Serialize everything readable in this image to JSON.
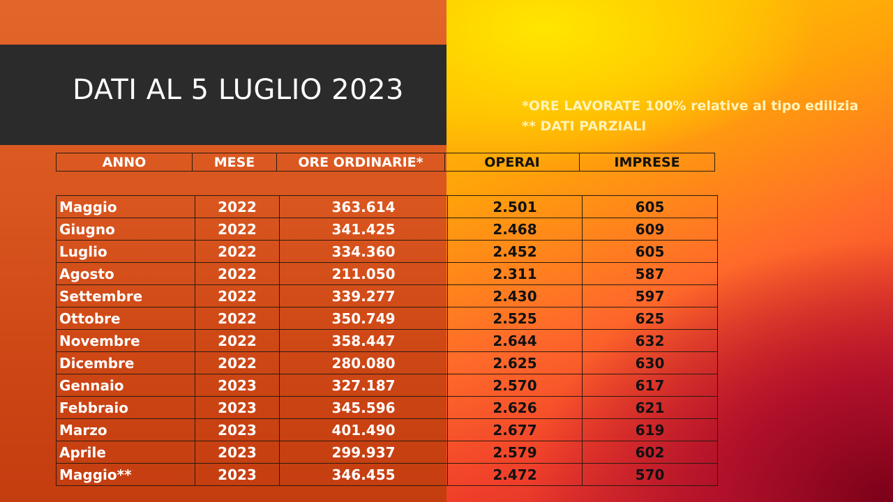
{
  "title": "DATI AL 5 LUGLIO 2023",
  "notes": {
    "line1": "*ORE LAVORATE 100% relative al tipo edilizia",
    "line2": "** DATI PARZIALI"
  },
  "colors": {
    "title_band": "#2b2b2b",
    "left_background": "#d9561f",
    "notes_text": "#fff4b8"
  },
  "table": {
    "headers": [
      "ANNO",
      "MESE",
      "ORE ORDINARIE*",
      "OPERAI",
      "IMPRESE"
    ],
    "rows": [
      [
        "Maggio",
        "2022",
        "363.614",
        "2.501",
        "605"
      ],
      [
        "Giugno",
        "2022",
        "341.425",
        "2.468",
        "609"
      ],
      [
        "Luglio",
        "2022",
        "334.360",
        "2.452",
        "605"
      ],
      [
        "Agosto",
        "2022",
        "211.050",
        "2.311",
        "587"
      ],
      [
        "Settembre",
        "2022",
        "339.277",
        "2.430",
        "597"
      ],
      [
        "Ottobre",
        "2022",
        "350.749",
        "2.525",
        "625"
      ],
      [
        "Novembre",
        "2022",
        "358.447",
        "2.644",
        "632"
      ],
      [
        "Dicembre",
        "2022",
        "280.080",
        "2.625",
        "630"
      ],
      [
        "Gennaio",
        "2023",
        "327.187",
        "2.570",
        "617"
      ],
      [
        "Febbraio",
        "2023",
        "345.596",
        "2.626",
        "621"
      ],
      [
        "Marzo",
        "2023",
        "401.490",
        "2.677",
        "619"
      ],
      [
        "Aprile",
        "2023",
        "299.937",
        "2.579",
        "602"
      ],
      [
        "Maggio**",
        "2023",
        "346.455",
        "2.472",
        "570"
      ]
    ]
  }
}
